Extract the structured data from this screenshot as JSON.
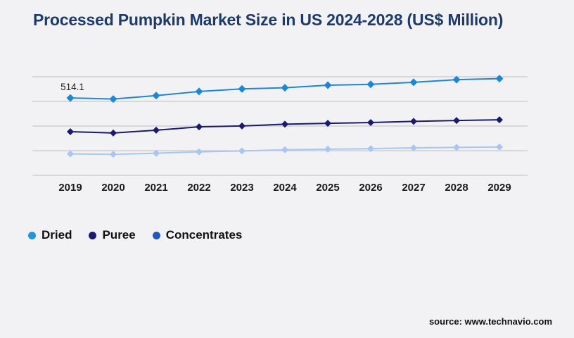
{
  "title": "Processed Pumpkin Market Size in US 2024-2028 (US$ Million)",
  "source": "source: www.technavio.com",
  "colors": {
    "background": "#f2f2f4",
    "title": "#1e3a6b",
    "grid": "#c9c9cb",
    "axis_label": "#1a1a1a",
    "annotation": "#222222"
  },
  "chart_data": {
    "type": "line",
    "title": "Processed Pumpkin Market Size in US 2024-2028 (US$ Million)",
    "x": [
      2019,
      2020,
      2021,
      2022,
      2023,
      2024,
      2025,
      2026,
      2027,
      2028,
      2029
    ],
    "series": [
      {
        "name": "Dried",
        "color": "#1b87d9",
        "marker": "diamond",
        "marker_size": 5.5,
        "values": [
          514.1,
          509.8,
          523.5,
          540.2,
          550.6,
          555.3,
          565.8,
          569.2,
          577.5,
          588.1,
          592.4
        ]
      },
      {
        "name": "Puree",
        "color": "#1a1a70",
        "marker": "diamond",
        "marker_size": 5,
        "values": [
          377.2,
          371.9,
          383.1,
          396.8,
          400.2,
          407.6,
          411.0,
          414.3,
          419.1,
          422.5,
          425.3
        ]
      },
      {
        "name": "Concentrates",
        "color": "#a9c5f1",
        "marker": "diamond",
        "marker_size": 5,
        "values": [
          287.0,
          285.2,
          289.8,
          295.4,
          299.1,
          303.6,
          305.9,
          308.2,
          311.4,
          313.2,
          315.0
        ]
      }
    ],
    "annotations": [
      {
        "series": "Dried",
        "x": 2019,
        "text": "514.1"
      }
    ],
    "xlabel": "",
    "ylabel": "",
    "ylim": [
      200,
      600
    ],
    "grid_step": 100,
    "grid": "horizontal-only",
    "y_axis_labels_visible": false,
    "legend_position": "bottom-left",
    "legend": [
      {
        "label": "Dried",
        "dot_color": "#2196e0"
      },
      {
        "label": "Puree",
        "dot_color": "#1a1a75"
      },
      {
        "label": "Concentrates",
        "dot_color": "#2355c4"
      }
    ]
  }
}
